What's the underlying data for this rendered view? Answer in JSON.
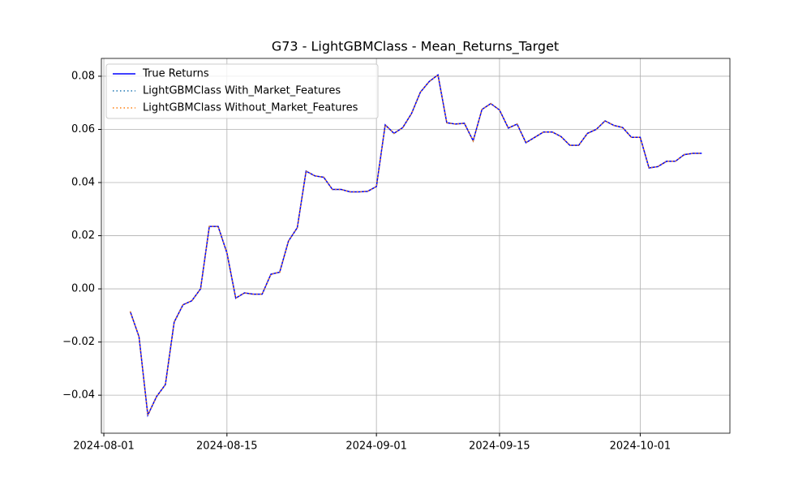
{
  "chart_data": {
    "type": "line",
    "title": "G73 - LightGBMClass - Mean_Returns_Target",
    "x": [
      "2024-08-04",
      "2024-08-05",
      "2024-08-06",
      "2024-08-07",
      "2024-08-08",
      "2024-08-09",
      "2024-08-10",
      "2024-08-11",
      "2024-08-12",
      "2024-08-13",
      "2024-08-14",
      "2024-08-15",
      "2024-08-16",
      "2024-08-17",
      "2024-08-18",
      "2024-08-19",
      "2024-08-20",
      "2024-08-21",
      "2024-08-22",
      "2024-08-23",
      "2024-08-24",
      "2024-08-25",
      "2024-08-26",
      "2024-08-27",
      "2024-08-28",
      "2024-08-29",
      "2024-08-30",
      "2024-08-31",
      "2024-09-01",
      "2024-09-02",
      "2024-09-03",
      "2024-09-04",
      "2024-09-05",
      "2024-09-06",
      "2024-09-07",
      "2024-09-08",
      "2024-09-09",
      "2024-09-10",
      "2024-09-11",
      "2024-09-12",
      "2024-09-13",
      "2024-09-14",
      "2024-09-15",
      "2024-09-16",
      "2024-09-17",
      "2024-09-18",
      "2024-09-19",
      "2024-09-20",
      "2024-09-21",
      "2024-09-22",
      "2024-09-23",
      "2024-09-24",
      "2024-09-25",
      "2024-09-26",
      "2024-09-27",
      "2024-09-28",
      "2024-09-29",
      "2024-09-30",
      "2024-10-01",
      "2024-10-02",
      "2024-10-03",
      "2024-10-04",
      "2024-10-05",
      "2024-10-06",
      "2024-10-07",
      "2024-10-08"
    ],
    "series": [
      {
        "name": "True Returns",
        "color": "#0000ff",
        "dash": "solid",
        "values": [
          -0.0085,
          -0.018,
          -0.0475,
          -0.0405,
          -0.036,
          -0.0125,
          -0.006,
          -0.0045,
          0.0,
          0.0235,
          0.0235,
          0.0135,
          -0.0035,
          -0.0015,
          -0.002,
          -0.002,
          0.0055,
          0.0063,
          0.018,
          0.023,
          0.0443,
          0.0425,
          0.042,
          0.0374,
          0.0374,
          0.0365,
          0.0365,
          0.0367,
          0.0385,
          0.0617,
          0.0585,
          0.0607,
          0.066,
          0.074,
          0.078,
          0.0805,
          0.0625,
          0.062,
          0.0623,
          0.0557,
          0.0675,
          0.0697,
          0.0673,
          0.0605,
          0.062,
          0.055,
          0.057,
          0.059,
          0.059,
          0.0573,
          0.054,
          0.054,
          0.0585,
          0.06,
          0.0632,
          0.0615,
          0.0607,
          0.057,
          0.057,
          0.0455,
          0.046,
          0.048,
          0.048,
          0.0505,
          0.051,
          0.051
        ]
      },
      {
        "name": "LightGBMClass With_Market_Features",
        "color": "#1f77b4",
        "dash": "dotted",
        "values": [
          -0.0085,
          -0.018,
          -0.0475,
          -0.0405,
          -0.036,
          -0.0125,
          -0.006,
          -0.0045,
          0.0,
          0.0235,
          0.0235,
          0.0135,
          -0.0035,
          -0.0015,
          -0.002,
          -0.002,
          0.0055,
          0.0063,
          0.018,
          0.023,
          0.0443,
          0.0425,
          0.042,
          0.0374,
          0.0374,
          0.0365,
          0.0365,
          0.0367,
          0.0385,
          0.0617,
          0.0585,
          0.0607,
          0.066,
          0.074,
          0.078,
          0.0805,
          0.0625,
          0.062,
          0.0623,
          0.0557,
          0.0675,
          0.0697,
          0.0673,
          0.0605,
          0.062,
          0.055,
          0.057,
          0.059,
          0.059,
          0.0573,
          0.054,
          0.054,
          0.0585,
          0.06,
          0.0632,
          0.0615,
          0.0607,
          0.057,
          0.057,
          0.0455,
          0.046,
          0.048,
          0.048,
          0.0505,
          0.051,
          0.051
        ]
      },
      {
        "name": "LightGBMClass Without_Market_Features",
        "color": "#ff7f0e",
        "dash": "dotted",
        "values": [
          -0.0085,
          -0.018,
          -0.0475,
          -0.0405,
          -0.036,
          -0.0125,
          -0.006,
          -0.0045,
          0.0,
          0.0235,
          0.0235,
          0.0135,
          -0.0035,
          -0.0015,
          -0.002,
          -0.002,
          0.0055,
          0.0063,
          0.018,
          0.023,
          0.0443,
          0.0425,
          0.042,
          0.0374,
          0.0374,
          0.0365,
          0.0365,
          0.0367,
          0.0385,
          0.0617,
          0.0585,
          0.0607,
          0.066,
          0.074,
          0.078,
          0.0805,
          0.0625,
          0.062,
          0.0623,
          0.0557,
          0.0675,
          0.0697,
          0.0673,
          0.0605,
          0.062,
          0.055,
          0.057,
          0.059,
          0.059,
          0.0573,
          0.054,
          0.054,
          0.0585,
          0.06,
          0.0632,
          0.0615,
          0.0607,
          0.057,
          0.057,
          0.0455,
          0.046,
          0.048,
          0.048,
          0.0505,
          0.051,
          0.051
        ]
      }
    ],
    "xlim": [
      "2024-07-31",
      "2024-10-11"
    ],
    "xticks": [
      "2024-08-01",
      "2024-08-15",
      "2024-09-01",
      "2024-09-15",
      "2024-10-01"
    ],
    "ylim": [
      -0.0543,
      0.0867
    ],
    "yticks": [
      {
        "value": -0.04,
        "label": "−0.04"
      },
      {
        "value": -0.02,
        "label": "−0.02"
      },
      {
        "value": 0,
        "label": "0.00"
      },
      {
        "value": 0.02,
        "label": "0.02"
      },
      {
        "value": 0.04,
        "label": "0.04"
      },
      {
        "value": 0.06,
        "label": "0.06"
      },
      {
        "value": 0.08,
        "label": "0.08"
      }
    ],
    "grid": true,
    "legend": "upper left"
  }
}
